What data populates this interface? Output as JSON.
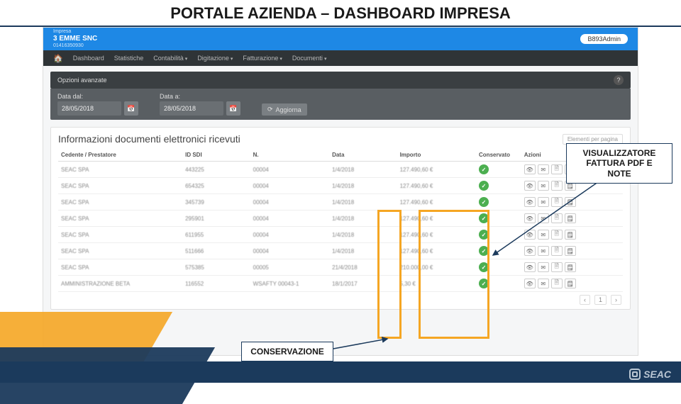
{
  "slide": {
    "title": "PORTALE AZIENDA – DASHBOARD IMPRESA"
  },
  "header": {
    "label": "Impresa",
    "company_name": "3 EMME SNC",
    "company_code": "01416350930",
    "user_badge": "B893Admin"
  },
  "nav": {
    "items": [
      "Dashboard",
      "Statistiche",
      "Contabilità",
      "Digitazione",
      "Fatturazione",
      "Documenti"
    ],
    "has_dropdown": [
      false,
      false,
      true,
      true,
      true,
      true
    ]
  },
  "options": {
    "title": "Opzioni avanzate"
  },
  "dates": {
    "from_label": "Data dal:",
    "to_label": "Data a:",
    "from_value": "28/05/2018",
    "to_value": "28/05/2018",
    "refresh": "Aggiorna"
  },
  "panel": {
    "title": "Informazioni documenti elettronici ricevuti",
    "per_page_label": "Elementi per pagina",
    "columns": [
      "Cedente / Prestatore",
      "ID SDI",
      "N.",
      "Data",
      "Importo",
      "Conservato",
      "Azioni"
    ],
    "rows": [
      {
        "cedente": "SEAC SPA",
        "idsdi": "443225",
        "n": "00004",
        "data": "1/4/2018",
        "importo": "127.490,60 €"
      },
      {
        "cedente": "SEAC SPA",
        "idsdi": "654325",
        "n": "00004",
        "data": "1/4/2018",
        "importo": "127.490,60 €"
      },
      {
        "cedente": "SEAC SPA",
        "idsdi": "345739",
        "n": "00004",
        "data": "1/4/2018",
        "importo": "127.490,60 €"
      },
      {
        "cedente": "SEAC SPA",
        "idsdi": "295901",
        "n": "00004",
        "data": "1/4/2018",
        "importo": "127.490,60 €"
      },
      {
        "cedente": "SEAC SPA",
        "idsdi": "611955",
        "n": "00004",
        "data": "1/4/2018",
        "importo": "127.490,60 €"
      },
      {
        "cedente": "SEAC SPA",
        "idsdi": "511666",
        "n": "00004",
        "data": "1/4/2018",
        "importo": "127.490,60 €"
      },
      {
        "cedente": "SEAC SPA",
        "idsdi": "575385",
        "n": "00005",
        "data": "21/4/2018",
        "importo": "210.000,00 €"
      },
      {
        "cedente": "AMMINISTRAZIONE BETA",
        "idsdi": "116552",
        "n": "WSAFTY 00043-1",
        "data": "18/1/2017",
        "importo": "5,30 €"
      }
    ],
    "pager": {
      "prev": "‹",
      "page": "1",
      "next": "›"
    }
  },
  "callouts": {
    "viewer": "VISUALIZZATORE FATTURA PDF E NOTE",
    "conservation": "CONSERVAZIONE"
  },
  "footer": {
    "logo_text": "SEAC"
  },
  "colors": {
    "navy": "#1b3a5c",
    "blue": "#1e88e5",
    "dark1": "#2f3437",
    "dark2": "#3a3f42",
    "dark3": "#595e62",
    "orange": "#f5a623",
    "green": "#4caf50"
  }
}
